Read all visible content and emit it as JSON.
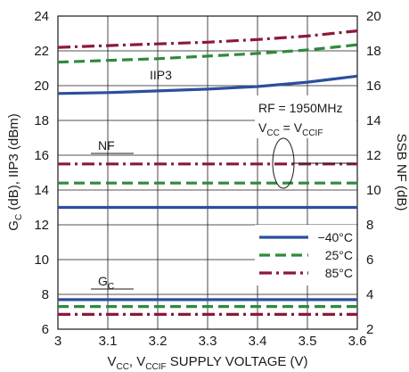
{
  "chart_data": {
    "type": "line",
    "xlabel": "V",
    "xlabel_sub1": "CC",
    "xlabel_mid": ", V",
    "xlabel_sub2": "CCIF",
    "xlabel_rest": " SUPPLY VOLTAGE (V)",
    "ylabel": "G",
    "ylabel_sub": "C",
    "ylabel_rest": " (dB), IIP3 (dBm)",
    "y2label": "SSB NF (dB)",
    "xlim": [
      3,
      3.6
    ],
    "ylim": [
      6,
      24
    ],
    "y2lim": [
      2,
      20
    ],
    "xticks": [
      "3",
      "3.1",
      "3.2",
      "3.3",
      "3.4",
      "3.5",
      "3.6"
    ],
    "yticks": [
      "6",
      "8",
      "10",
      "12",
      "14",
      "16",
      "18",
      "20",
      "22",
      "24"
    ],
    "y2ticks": [
      "2",
      "4",
      "6",
      "8",
      "10",
      "12",
      "14",
      "16",
      "18",
      "20"
    ],
    "grid": true,
    "legend_position": "lower-right",
    "series": [
      {
        "name": "−40°C",
        "color": "#2b4f9e",
        "style": "solid",
        "group": "IIP3",
        "axis": "left",
        "x": [
          3,
          3.1,
          3.2,
          3.3,
          3.4,
          3.5,
          3.6
        ],
        "y": [
          19.55,
          19.6,
          19.7,
          19.8,
          19.95,
          20.2,
          20.55
        ]
      },
      {
        "name": "25°C",
        "color": "#2e8b3a",
        "style": "dash",
        "group": "IIP3",
        "axis": "left",
        "x": [
          3,
          3.1,
          3.2,
          3.3,
          3.4,
          3.5,
          3.6
        ],
        "y": [
          21.35,
          21.45,
          21.55,
          21.7,
          21.85,
          22.05,
          22.35
        ]
      },
      {
        "name": "85°C",
        "color": "#8b1a3a",
        "style": "dashdot",
        "group": "IIP3",
        "axis": "left",
        "x": [
          3,
          3.1,
          3.2,
          3.3,
          3.4,
          3.5,
          3.6
        ],
        "y": [
          22.2,
          22.3,
          22.4,
          22.5,
          22.65,
          22.85,
          23.15
        ]
      },
      {
        "name": "−40°C",
        "color": "#2b4f9e",
        "style": "solid",
        "group": "NF",
        "axis": "right",
        "x": [
          3,
          3.6
        ],
        "y": [
          9.0,
          9.0
        ]
      },
      {
        "name": "25°C",
        "color": "#2e8b3a",
        "style": "dash",
        "group": "NF",
        "axis": "right",
        "x": [
          3,
          3.6
        ],
        "y": [
          10.4,
          10.4
        ]
      },
      {
        "name": "85°C",
        "color": "#8b1a3a",
        "style": "dashdot",
        "group": "NF",
        "axis": "right",
        "x": [
          3,
          3.6
        ],
        "y": [
          11.5,
          11.5
        ]
      },
      {
        "name": "−40°C",
        "color": "#2b4f9e",
        "style": "solid",
        "group": "GC",
        "axis": "left",
        "x": [
          3,
          3.6
        ],
        "y": [
          7.7,
          7.7
        ]
      },
      {
        "name": "25°C",
        "color": "#2e8b3a",
        "style": "dash",
        "group": "GC",
        "axis": "left",
        "x": [
          3,
          3.6
        ],
        "y": [
          7.3,
          7.3
        ]
      },
      {
        "name": "85°C",
        "color": "#8b1a3a",
        "style": "dashdot",
        "group": "GC",
        "axis": "left",
        "x": [
          3,
          3.6
        ],
        "y": [
          6.85,
          6.85
        ]
      }
    ],
    "annotations": {
      "iip3": "IIP3",
      "nf": "NF",
      "gc_main": "G",
      "gc_sub": "C",
      "rf": "RF = 1950MHz",
      "vcc_main": "V",
      "vcc_sub1": "CC",
      "vcc_eq": " = V",
      "vcc_sub2": "CCIF"
    },
    "legend": [
      {
        "label": "−40°C",
        "color": "#2b4f9e",
        "style": "solid"
      },
      {
        "label": "25°C",
        "color": "#2e8b3a",
        "style": "dash"
      },
      {
        "label": "85°C",
        "color": "#8b1a3a",
        "style": "dashdot"
      }
    ]
  }
}
